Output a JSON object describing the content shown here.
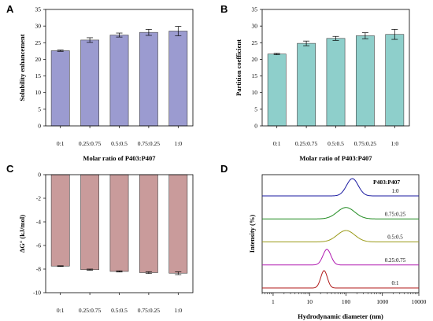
{
  "chart_data": [
    {
      "type": "bar",
      "panel": "A",
      "categories": [
        "0:1",
        "0.25:0.75",
        "0.5:0.5",
        "0.75:0.25",
        "1:0"
      ],
      "values": [
        22.6,
        25.8,
        27.3,
        28.1,
        28.5
      ],
      "errors": [
        0.2,
        0.7,
        0.6,
        0.9,
        1.4
      ],
      "xlabel": "Molar ratio of P403:P407",
      "ylabel": "Solubility enhancement",
      "ylim": [
        0,
        35
      ],
      "yticks": [
        0,
        5,
        10,
        15,
        20,
        25,
        30,
        35
      ],
      "color": "#9b9bd0"
    },
    {
      "type": "bar",
      "panel": "B",
      "categories": [
        "0:1",
        "0.25:0.75",
        "0.5:0.5",
        "0.75:0.25",
        "1:0"
      ],
      "values": [
        21.6,
        24.8,
        26.3,
        27.1,
        27.5
      ],
      "errors": [
        0.2,
        0.7,
        0.6,
        0.9,
        1.5
      ],
      "xlabel": "Molar ratio of P403:P407",
      "ylabel": "Partition coefficient",
      "ylim": [
        0,
        35
      ],
      "yticks": [
        0,
        5,
        10,
        15,
        20,
        25,
        30,
        35
      ],
      "color": "#8ecfcb"
    },
    {
      "type": "bar",
      "panel": "C",
      "categories": [
        "0:1",
        "0.25:0.75",
        "0.5:0.5",
        "0.75:0.25",
        "1:0"
      ],
      "values": [
        -7.75,
        -8.05,
        -8.2,
        -8.3,
        -8.35
      ],
      "errors": [
        0.03,
        0.05,
        0.05,
        0.08,
        0.12
      ],
      "xlabel": "Molar ratio of P403:P407",
      "ylabel": "ΔG° (kJ/mol)",
      "ylim": [
        -10,
        0
      ],
      "yticks": [
        0,
        -2,
        -4,
        -6,
        -8,
        -10
      ],
      "color": "#c99b9b"
    },
    {
      "type": "line",
      "panel": "D",
      "xscale": "log",
      "xlim": [
        0.5,
        10000
      ],
      "xticks": [
        1,
        10,
        100,
        1000,
        10000
      ],
      "xlabel": "Hydrodynamic diameter (nm)",
      "ylabel": "Intensity (%)",
      "legend_title": "P403:P407",
      "series": [
        {
          "name": "1:0",
          "color": "#1a1aa0",
          "center": 150,
          "width": 0.16,
          "height": 1.0
        },
        {
          "name": "0.75:0.25",
          "color": "#1e8a1e",
          "center": 100,
          "width": 0.24,
          "height": 0.66
        },
        {
          "name": "0.5:0.5",
          "color": "#9a9a18",
          "center": 100,
          "width": 0.24,
          "height": 0.66
        },
        {
          "name": "0.25:0.75",
          "color": "#b01ab0",
          "center": 30,
          "width": 0.11,
          "height": 0.9
        },
        {
          "name": "0:1",
          "color": "#b01a1a",
          "center": 25,
          "width": 0.09,
          "height": 1.0
        }
      ]
    }
  ]
}
